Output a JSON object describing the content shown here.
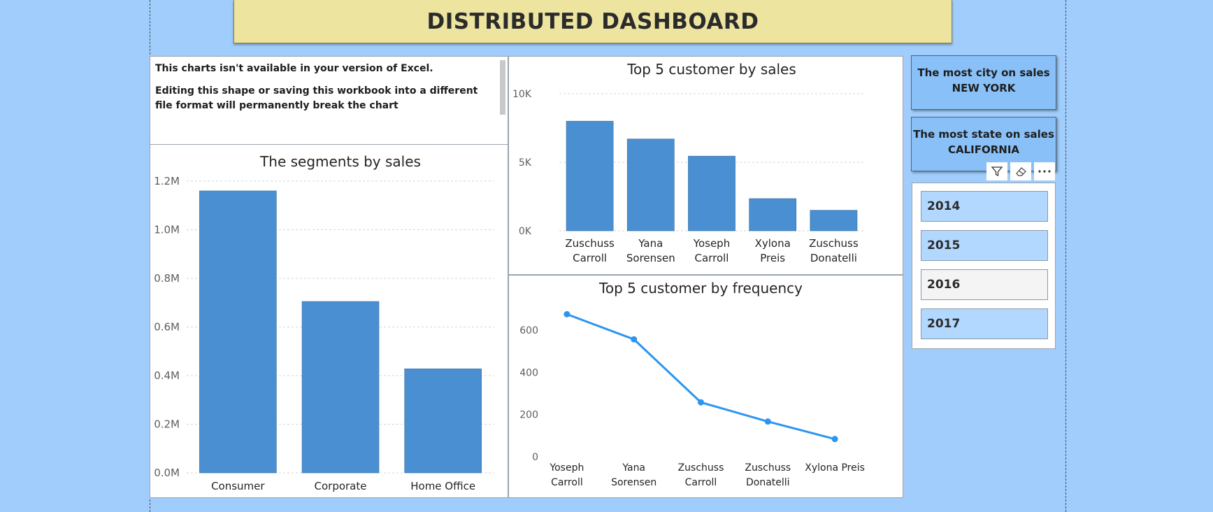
{
  "header": {
    "title": "DISTRIBUTED DASHBOARD"
  },
  "notice": {
    "line1": "This charts isn't available in your version of Excel.",
    "line2": "Editing this shape or saving this workbook into a different file format will permanently break the chart"
  },
  "cards": {
    "city": {
      "label": "The most city on sales",
      "value": "NEW YORK"
    },
    "state": {
      "label": "The most state on sales",
      "value": "CALIFORNIA"
    }
  },
  "slicer": {
    "items": [
      {
        "label": "2014",
        "selected": true
      },
      {
        "label": "2015",
        "selected": true
      },
      {
        "label": "2016",
        "selected": false
      },
      {
        "label": "2017",
        "selected": true
      }
    ]
  },
  "colors": {
    "background": "#a0cdfb",
    "bar": "#4a8fd1",
    "line": "#2d95f0",
    "banner": "#ede4a0",
    "card": "#88c0f7",
    "slicer_selected": "#b3d8ff"
  },
  "chart_data": [
    {
      "type": "bar",
      "title": "The segments by sales",
      "categories": [
        "Consumer",
        "Corporate",
        "Home Office"
      ],
      "values": [
        1160000,
        705000,
        428000
      ],
      "ylim": [
        0,
        1200000
      ],
      "ticks": [
        0,
        200000,
        400000,
        600000,
        800000,
        1000000,
        1200000
      ],
      "tick_labels": [
        "0.0M",
        "0.2M",
        "0.4M",
        "0.6M",
        "0.8M",
        "1.0M",
        "1.2M"
      ],
      "xlabel": "",
      "ylabel": "",
      "grid": true
    },
    {
      "type": "bar",
      "title": "Top 5 customer by sales",
      "categories": [
        [
          "Zuschuss",
          "Carroll"
        ],
        [
          "Yana",
          "Sorensen"
        ],
        [
          "Yoseph",
          "Carroll"
        ],
        [
          "Xylona",
          "Preis"
        ],
        [
          "Zuschuss",
          "Donatelli"
        ]
      ],
      "values": [
        8000,
        6700,
        5450,
        2350,
        1500
      ],
      "ylim": [
        0,
        10000
      ],
      "ticks": [
        0,
        5000,
        10000
      ],
      "tick_labels": [
        "0K",
        "5K",
        "10K"
      ],
      "xlabel": "",
      "ylabel": "",
      "grid": true
    },
    {
      "type": "line",
      "title": "Top 5 customer by frequency",
      "categories": [
        [
          "Yoseph",
          "Carroll"
        ],
        [
          "Yana",
          "Sorensen"
        ],
        [
          "Zuschuss",
          "Carroll"
        ],
        [
          "Zuschuss",
          "Donatelli"
        ],
        [
          "Xylona Preis"
        ]
      ],
      "values": [
        676,
        557,
        258,
        167,
        84
      ],
      "ylim": [
        0,
        700
      ],
      "ticks": [
        0,
        200,
        400,
        600
      ],
      "tick_labels": [
        "0",
        "200",
        "400",
        "600"
      ],
      "xlabel": "",
      "ylabel": "",
      "grid": false
    }
  ]
}
